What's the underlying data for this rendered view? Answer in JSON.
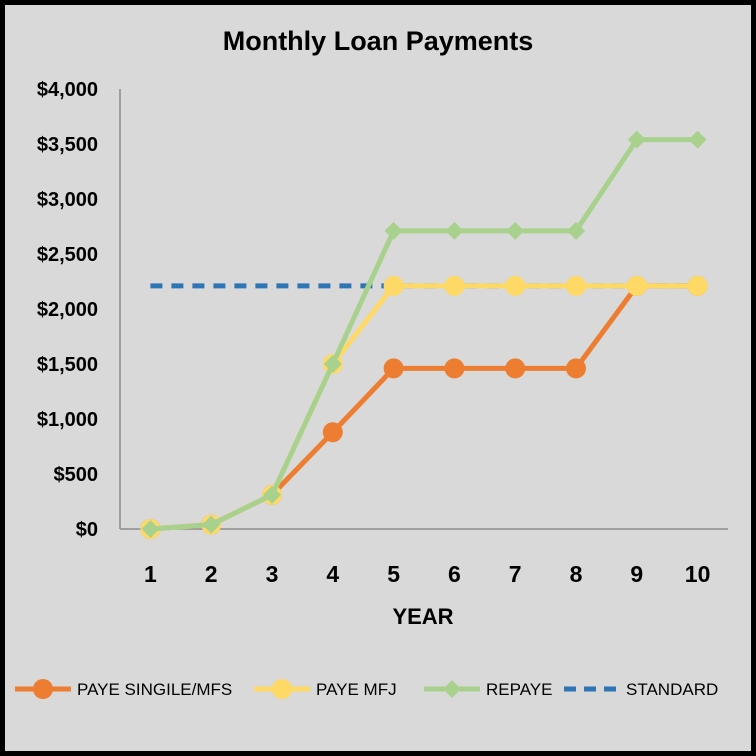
{
  "chart_data": {
    "type": "line",
    "title": "Monthly Loan Payments",
    "xlabel": "YEAR",
    "ylabel": "",
    "x": [
      1,
      2,
      3,
      4,
      5,
      6,
      7,
      8,
      9,
      10
    ],
    "ylim": [
      0,
      4000
    ],
    "y_ticks": [
      0,
      500,
      1000,
      1500,
      2000,
      2500,
      3000,
      3500,
      4000
    ],
    "y_tick_labels": [
      "$0",
      "$500",
      "$1,000",
      "$1,500",
      "$2,000",
      "$2,500",
      "$3,000",
      "$3,500",
      "$4,000"
    ],
    "grid": false,
    "legend_position": "bottom",
    "series": [
      {
        "name": "PAYE SINGILE/MFS",
        "color": "#ed7d31",
        "marker": "circle",
        "style": "solid",
        "values": [
          0,
          40,
          310,
          880,
          1460,
          1460,
          1460,
          1460,
          2210,
          2210
        ]
      },
      {
        "name": "PAYE MFJ",
        "color": "#ffd966",
        "marker": "circle",
        "style": "solid",
        "values": [
          0,
          40,
          310,
          1500,
          2210,
          2210,
          2210,
          2210,
          2210,
          2210
        ]
      },
      {
        "name": "REPAYE",
        "color": "#a9d18e",
        "marker": "diamond",
        "style": "solid",
        "values": [
          0,
          40,
          310,
          1500,
          2710,
          2710,
          2710,
          2710,
          3540,
          3540
        ]
      },
      {
        "name": "STANDARD",
        "color": "#2e75b6",
        "marker": "none",
        "style": "dashed",
        "values": [
          2210,
          2210,
          2210,
          2210,
          2210,
          2210,
          2210,
          2210,
          2210,
          2210
        ]
      }
    ]
  }
}
